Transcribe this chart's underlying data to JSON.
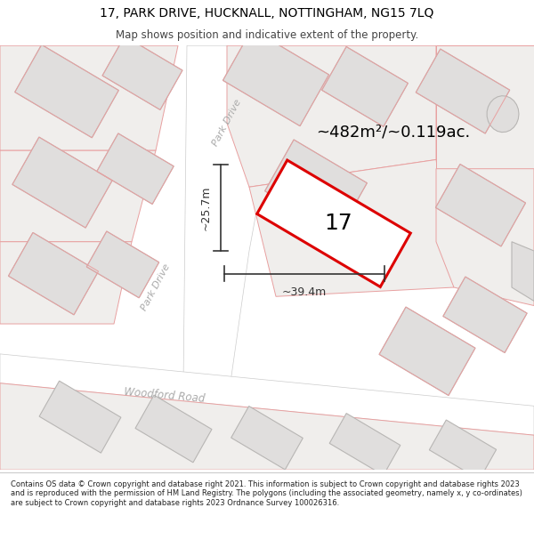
{
  "title_line1": "17, PARK DRIVE, HUCKNALL, NOTTINGHAM, NG15 7LQ",
  "title_line2": "Map shows position and indicative extent of the property.",
  "footer_text": "Contains OS data © Crown copyright and database right 2021. This information is subject to Crown copyright and database rights 2023 and is reproduced with the permission of HM Land Registry. The polygons (including the associated geometry, namely x, y co-ordinates) are subject to Crown copyright and database rights 2023 Ordnance Survey 100026316.",
  "area_label": "~482m²/~0.119ac.",
  "property_number": "17",
  "dim_width": "~39.4m",
  "dim_height": "~25.7m",
  "map_bg": "#f5f3f0",
  "building_fill": "#e0dedd",
  "building_edge": "#b8b6b4",
  "plot_fill": "#f0eeec",
  "plot_edge": "#c8c4c0",
  "highlight_fill": "#ffffff",
  "highlight_edge": "#dd0000",
  "pink_edge": "#e8a0a0",
  "road_label_color": "#aaaaaa",
  "text_color": "#000000",
  "dim_color": "#333333",
  "title_fontsize": 10,
  "subtitle_fontsize": 8.5,
  "footer_fontsize": 6.0
}
